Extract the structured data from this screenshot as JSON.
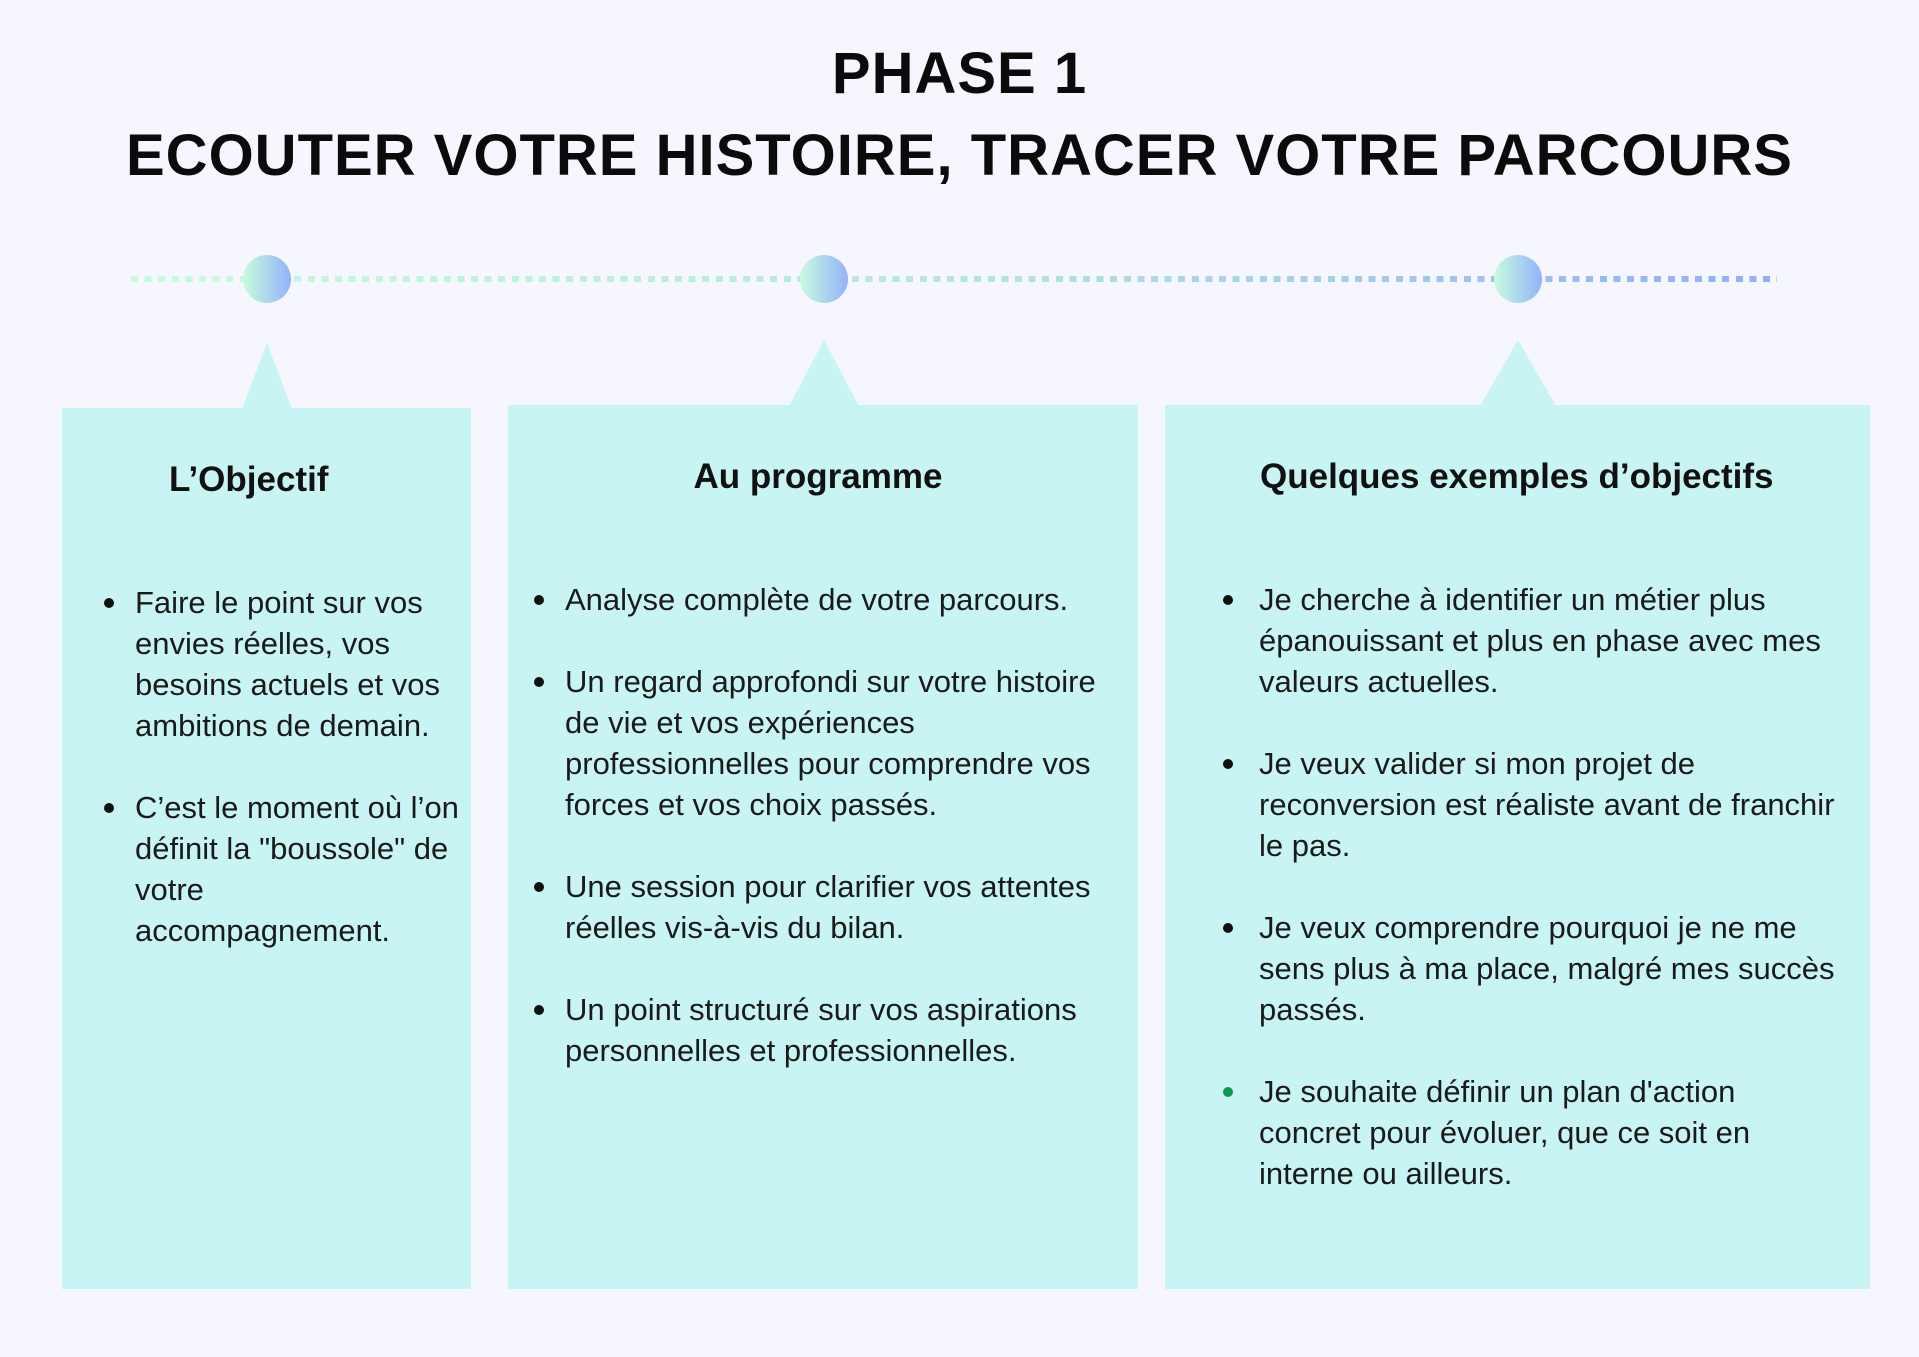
{
  "header": {
    "line1": "PHASE 1",
    "line2": "ECOUTER VOTRE HISTOIRE, TRACER VOTRE PARCOURS"
  },
  "colors": {
    "background": "#f5f6fe",
    "panel": "#c8f4f4",
    "node_gradient_start": "#c8fcdc",
    "node_gradient_end": "#93b2fb",
    "green_bullet": "#0a9a50"
  },
  "panels": [
    {
      "title": "L’Objectif",
      "items": [
        "Faire le point sur vos envies réelles, vos besoins actuels et vos ambitions de demain.",
        "C’est le moment où l’on définit la \"boussole\" de  votre accompagnement."
      ]
    },
    {
      "title": "Au programme",
      "items": [
        "Analyse complète de votre parcours.",
        "Un regard approfondi sur votre histoire de vie et vos expériences professionnelles pour comprendre vos forces et vos choix passés.",
        "Une session pour clarifier vos attentes réelles vis-à-vis du bilan.",
        " Un point structuré sur vos aspirations personnelles et professionnelles."
      ]
    },
    {
      "title": "Quelques exemples d’objectifs",
      "items": [
        " Je cherche à identifier un métier plus épanouissant et plus en phase avec mes valeurs actuelles.",
        " Je veux valider si mon projet de reconversion est réaliste avant de franchir le pas.",
        " Je veux comprendre pourquoi je ne me sens plus à ma place, malgré mes succès passés.",
        " Je souhaite définir un plan d'action concret pour évoluer, que ce soit en interne ou ailleurs."
      ]
    }
  ]
}
